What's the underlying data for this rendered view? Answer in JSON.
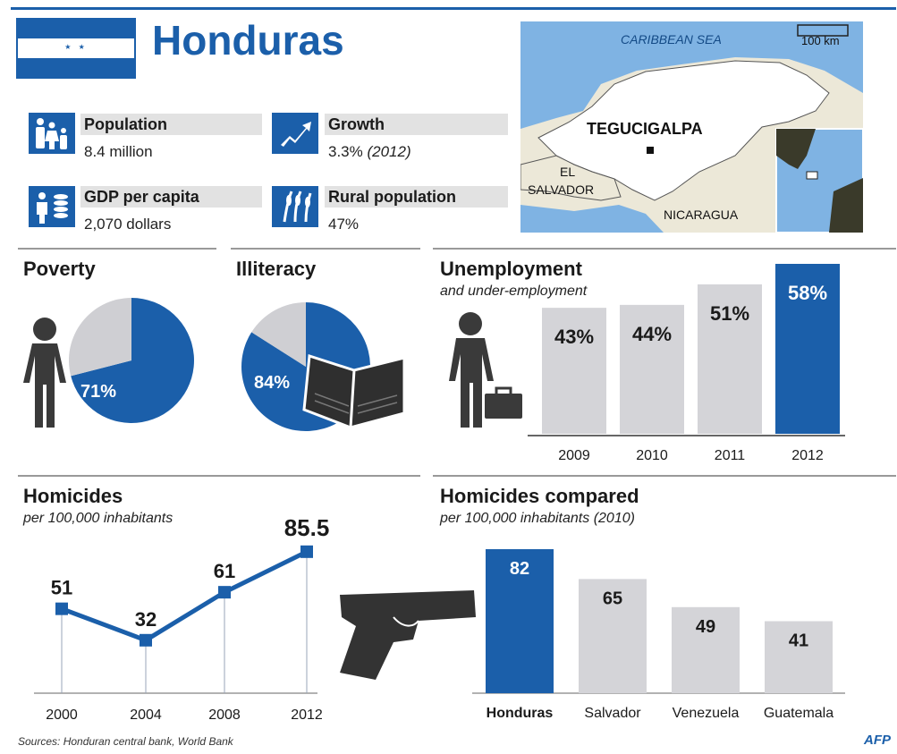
{
  "header": {
    "title": "Honduras"
  },
  "stats": [
    {
      "label": "Population",
      "value": "8.4 million",
      "icon": "family-icon"
    },
    {
      "label": "Growth",
      "value": "3.3%",
      "note": "(2012)",
      "icon": "growth-arrow-icon"
    },
    {
      "label": "GDP per capita",
      "value": "2,070 dollars",
      "icon": "money-person-icon"
    },
    {
      "label": "Rural population",
      "value": "47%",
      "icon": "wheat-icon"
    }
  ],
  "map": {
    "sea": "CARIBBEAN SEA",
    "scale": "100 km",
    "capital": "TEGUCIGALPA",
    "neighbor_1": "EL",
    "neighbor_2": "SALVADOR",
    "neighbor_3": "NICARAGUA",
    "colors": {
      "water": "#7fb3e3",
      "land": "#ffffff",
      "neighbors": "#ece8d8",
      "accent": "#1b5faa"
    }
  },
  "source": "Sources: Honduran central bank, World Bank",
  "logo": "AFP",
  "chart_data": [
    {
      "type": "pie",
      "title": "Poverty",
      "slices": [
        {
          "label": "71%",
          "value": 71,
          "color": "#1b5faa"
        },
        {
          "value": 29,
          "color": "#cfcfd3"
        }
      ]
    },
    {
      "type": "pie",
      "title": "Illiteracy",
      "slices": [
        {
          "label": "84%",
          "value": 84,
          "color": "#1b5faa"
        },
        {
          "value": 16,
          "color": "#cfcfd3"
        }
      ]
    },
    {
      "type": "bar",
      "title": "Unemployment",
      "subtitle": "and under-employment",
      "categories": [
        "2009",
        "2010",
        "2011",
        "2012"
      ],
      "values": [
        43,
        44,
        51,
        58
      ],
      "labels": [
        "43%",
        "44%",
        "51%",
        "58%"
      ],
      "highlight": "2012",
      "colors": {
        "bar": "#d4d4d8",
        "highlight": "#1b5faa"
      }
    },
    {
      "type": "line",
      "title": "Homicides",
      "subtitle": "per 100,000 inhabitants",
      "x": [
        "2000",
        "2004",
        "2008",
        "2012"
      ],
      "y": [
        51,
        32,
        61,
        85.5
      ],
      "labels": [
        "51",
        "32",
        "61",
        "85.5"
      ],
      "color": "#1b5faa"
    },
    {
      "type": "bar",
      "title": "Homicides compared",
      "subtitle": "per 100,000 inhabitants (2010)",
      "categories": [
        "Honduras",
        "Salvador",
        "Venezuela",
        "Guatemala"
      ],
      "values": [
        82,
        65,
        49,
        41
      ],
      "labels": [
        "82",
        "65",
        "49",
        "41"
      ],
      "highlight": "Honduras",
      "colors": {
        "bar": "#d4d4d8",
        "highlight": "#1b5faa"
      }
    }
  ]
}
